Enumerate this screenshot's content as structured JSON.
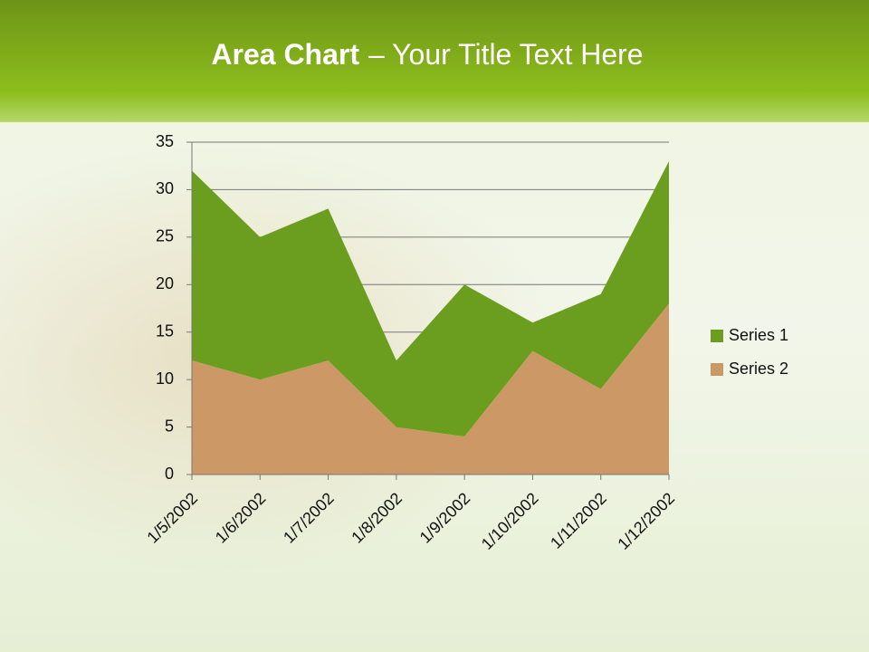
{
  "chart_data": {
    "type": "stacked_area",
    "title": {
      "bold": "Area Chart",
      "rest": "– Your Title Text Here"
    },
    "categories": [
      "1/5/2002",
      "1/6/2002",
      "1/7/2002",
      "1/8/2002",
      "1/9/2002",
      "1/10/2002",
      "1/11/2002",
      "1/12/2002"
    ],
    "series": [
      {
        "name": "Series 1",
        "color": "#6b9e1f",
        "values": [
          20,
          15,
          16,
          7,
          16,
          3,
          10,
          15
        ]
      },
      {
        "name": "Series 2",
        "color": "#cc9966",
        "values": [
          12,
          10,
          12,
          5,
          4,
          13,
          9,
          18
        ]
      }
    ],
    "stack_order": [
      1,
      0
    ],
    "ylim": [
      0,
      35
    ],
    "yticks": [
      0,
      5,
      10,
      15,
      20,
      25,
      30,
      35
    ],
    "grid": true,
    "legend": "right"
  }
}
